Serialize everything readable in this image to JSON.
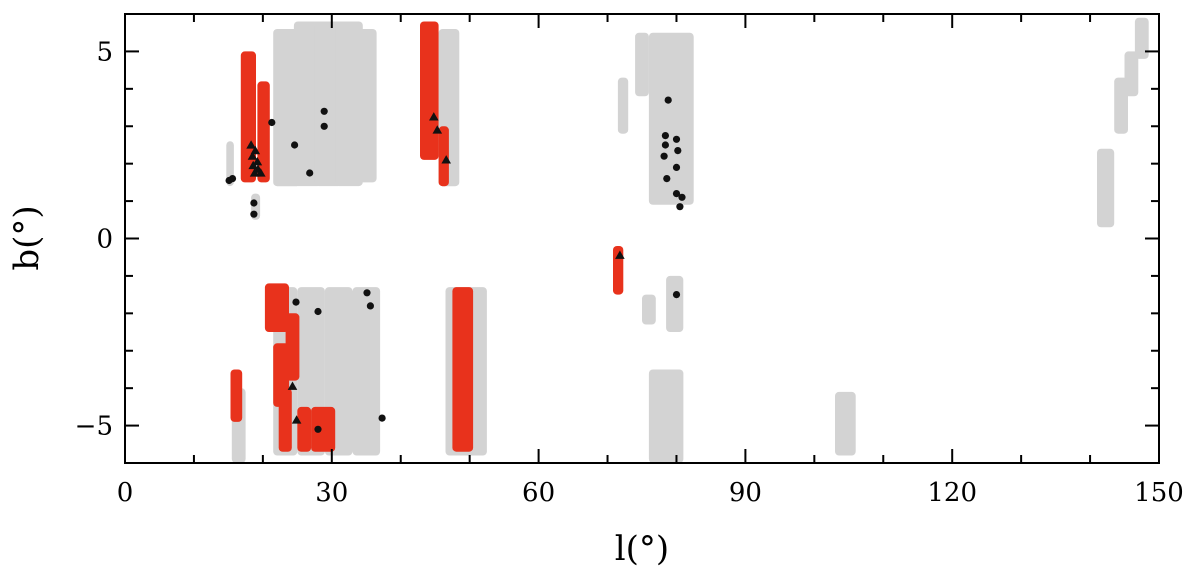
{
  "chart_data": {
    "type": "scatter",
    "title": "",
    "xlabel": "l(°)",
    "ylabel": "b(°)",
    "xlim": [
      0,
      150
    ],
    "ylim": [
      -6,
      6
    ],
    "xticks": [
      0,
      30,
      60,
      90,
      120,
      150
    ],
    "yticks": [
      -5,
      0,
      5
    ],
    "x_minor_step": 10,
    "y_minor_step": 1,
    "grid": false,
    "colors": {
      "gray_region": "#d3d3d3",
      "red_region": "#e8321c",
      "marker": "#111111"
    },
    "regions": [
      {
        "color": "gray",
        "l": [
          14.7,
          15.8
        ],
        "b": [
          1.4,
          2.6
        ]
      },
      {
        "color": "gray",
        "l": [
          18.3,
          19.6
        ],
        "b": [
          0.5,
          1.2
        ]
      },
      {
        "color": "gray",
        "l": [
          21.5,
          25.5
        ],
        "b": [
          1.4,
          5.6
        ]
      },
      {
        "color": "gray",
        "l": [
          24.5,
          28.5
        ],
        "b": [
          1.4,
          5.8
        ]
      },
      {
        "color": "gray",
        "l": [
          27.5,
          31.5
        ],
        "b": [
          1.4,
          5.8
        ]
      },
      {
        "color": "gray",
        "l": [
          30.5,
          34.5
        ],
        "b": [
          1.4,
          5.8
        ]
      },
      {
        "color": "gray",
        "l": [
          33.5,
          36.5
        ],
        "b": [
          1.5,
          5.6
        ]
      },
      {
        "color": "gray",
        "l": [
          45.5,
          48.5
        ],
        "b": [
          1.4,
          5.6
        ]
      },
      {
        "color": "gray",
        "l": [
          71.5,
          73.0
        ],
        "b": [
          2.8,
          4.3
        ]
      },
      {
        "color": "gray",
        "l": [
          74.0,
          76.0
        ],
        "b": [
          3.8,
          5.5
        ]
      },
      {
        "color": "gray",
        "l": [
          76.0,
          82.5
        ],
        "b": [
          0.9,
          5.5
        ]
      },
      {
        "color": "gray",
        "l": [
          141.0,
          143.5
        ],
        "b": [
          0.3,
          2.4
        ]
      },
      {
        "color": "gray",
        "l": [
          143.5,
          145.5
        ],
        "b": [
          2.8,
          4.3
        ]
      },
      {
        "color": "gray",
        "l": [
          145.0,
          147.0
        ],
        "b": [
          3.8,
          5.0
        ]
      },
      {
        "color": "gray",
        "l": [
          146.5,
          148.5
        ],
        "b": [
          4.8,
          5.9
        ]
      },
      {
        "color": "gray",
        "l": [
          15.5,
          17.5
        ],
        "b": [
          -6.0,
          -4.0
        ]
      },
      {
        "color": "gray",
        "l": [
          21.5,
          25.0
        ],
        "b": [
          -5.8,
          -1.3
        ]
      },
      {
        "color": "gray",
        "l": [
          25.0,
          29.0
        ],
        "b": [
          -5.8,
          -1.3
        ]
      },
      {
        "color": "gray",
        "l": [
          29.0,
          33.0
        ],
        "b": [
          -5.8,
          -1.3
        ]
      },
      {
        "color": "gray",
        "l": [
          33.0,
          37.0
        ],
        "b": [
          -5.8,
          -1.3
        ]
      },
      {
        "color": "gray",
        "l": [
          46.5,
          52.5
        ],
        "b": [
          -5.8,
          -1.3
        ]
      },
      {
        "color": "gray",
        "l": [
          75.0,
          77.0
        ],
        "b": [
          -2.3,
          -1.5
        ]
      },
      {
        "color": "gray",
        "l": [
          78.5,
          81.0
        ],
        "b": [
          -2.5,
          -1.0
        ]
      },
      {
        "color": "gray",
        "l": [
          76.0,
          81.0
        ],
        "b": [
          -6.0,
          -3.5
        ]
      },
      {
        "color": "gray",
        "l": [
          103.0,
          106.0
        ],
        "b": [
          -5.8,
          -4.1
        ]
      },
      {
        "color": "red",
        "l": [
          16.8,
          19.0
        ],
        "b": [
          1.5,
          5.0
        ]
      },
      {
        "color": "red",
        "l": [
          19.2,
          21.0
        ],
        "b": [
          1.5,
          4.2
        ]
      },
      {
        "color": "red",
        "l": [
          42.8,
          45.5
        ],
        "b": [
          2.1,
          5.8
        ]
      },
      {
        "color": "red",
        "l": [
          45.5,
          47.0
        ],
        "b": [
          1.4,
          3.0
        ]
      },
      {
        "color": "red",
        "l": [
          70.8,
          72.3
        ],
        "b": [
          -1.5,
          -0.2
        ]
      },
      {
        "color": "red",
        "l": [
          15.3,
          17.0
        ],
        "b": [
          -4.9,
          -3.5
        ]
      },
      {
        "color": "red",
        "l": [
          20.3,
          23.8
        ],
        "b": [
          -2.5,
          -1.2
        ]
      },
      {
        "color": "red",
        "l": [
          21.5,
          23.8
        ],
        "b": [
          -4.5,
          -2.8
        ]
      },
      {
        "color": "red",
        "l": [
          23.3,
          25.3
        ],
        "b": [
          -3.8,
          -2.0
        ]
      },
      {
        "color": "red",
        "l": [
          22.3,
          24.2
        ],
        "b": [
          -5.7,
          -4.0
        ]
      },
      {
        "color": "red",
        "l": [
          25.0,
          27.0
        ],
        "b": [
          -5.7,
          -4.5
        ]
      },
      {
        "color": "red",
        "l": [
          27.0,
          30.5
        ],
        "b": [
          -5.7,
          -4.5
        ]
      },
      {
        "color": "red",
        "l": [
          47.5,
          50.5
        ],
        "b": [
          -5.7,
          -1.3
        ]
      }
    ],
    "circles": [
      {
        "l": 15.1,
        "b": 1.55
      },
      {
        "l": 15.6,
        "b": 1.6
      },
      {
        "l": 18.7,
        "b": 0.95
      },
      {
        "l": 18.7,
        "b": 0.65
      },
      {
        "l": 21.3,
        "b": 3.1
      },
      {
        "l": 24.6,
        "b": 2.5
      },
      {
        "l": 26.8,
        "b": 1.75
      },
      {
        "l": 28.9,
        "b": 3.4
      },
      {
        "l": 28.9,
        "b": 3.0
      },
      {
        "l": 78.8,
        "b": 3.7
      },
      {
        "l": 78.4,
        "b": 2.75
      },
      {
        "l": 78.4,
        "b": 2.5
      },
      {
        "l": 78.2,
        "b": 2.2
      },
      {
        "l": 80.0,
        "b": 2.65
      },
      {
        "l": 80.2,
        "b": 2.35
      },
      {
        "l": 78.6,
        "b": 1.6
      },
      {
        "l": 80.0,
        "b": 1.9
      },
      {
        "l": 80.0,
        "b": 1.2
      },
      {
        "l": 80.8,
        "b": 1.1
      },
      {
        "l": 80.5,
        "b": 0.85
      },
      {
        "l": 24.8,
        "b": -1.7
      },
      {
        "l": 28.0,
        "b": -1.95
      },
      {
        "l": 35.1,
        "b": -1.45
      },
      {
        "l": 35.6,
        "b": -1.8
      },
      {
        "l": 37.3,
        "b": -4.8
      },
      {
        "l": 28.0,
        "b": -5.1
      },
      {
        "l": 80.0,
        "b": -1.5
      }
    ],
    "triangles": [
      {
        "l": 18.3,
        "b": 2.5
      },
      {
        "l": 18.9,
        "b": 2.35
      },
      {
        "l": 18.5,
        "b": 2.2
      },
      {
        "l": 19.2,
        "b": 2.05
      },
      {
        "l": 18.6,
        "b": 1.95
      },
      {
        "l": 19.3,
        "b": 1.85
      },
      {
        "l": 18.8,
        "b": 1.75
      },
      {
        "l": 19.7,
        "b": 1.75
      },
      {
        "l": 44.8,
        "b": 3.25
      },
      {
        "l": 45.3,
        "b": 2.9
      },
      {
        "l": 46.6,
        "b": 2.1
      },
      {
        "l": 71.8,
        "b": -0.45
      },
      {
        "l": 24.3,
        "b": -3.95
      },
      {
        "l": 24.9,
        "b": -4.85
      }
    ]
  }
}
